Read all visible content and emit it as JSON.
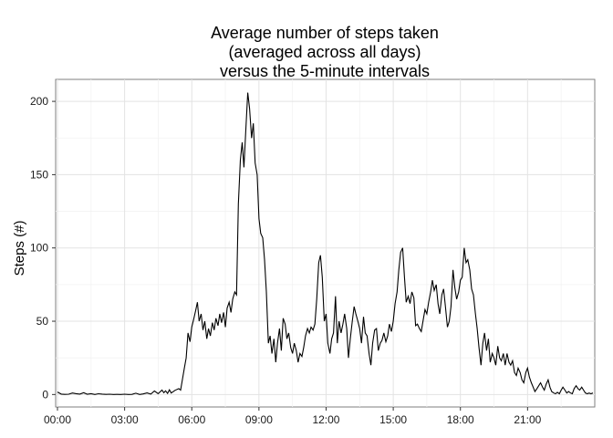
{
  "chart_data": {
    "type": "line",
    "title_lines": [
      "Average number of steps taken",
      "(averaged across all days)",
      "versus the 5-minute intervals"
    ],
    "xlabel": "",
    "ylabel": "Steps (#)",
    "x_unit": "hours since 00:00 (5-minute intervals)",
    "xlim": [
      0,
      23.92
    ],
    "ylim": [
      0,
      215
    ],
    "x_tick_labels": [
      "00:00",
      "03:00",
      "06:00",
      "09:00",
      "12:00",
      "15:00",
      "18:00",
      "21:00"
    ],
    "x_tick_values": [
      0,
      3,
      6,
      9,
      12,
      15,
      18,
      21
    ],
    "y_ticks": [
      0,
      50,
      100,
      150,
      200
    ],
    "grid": true,
    "line_color": "#000000",
    "series": [
      {
        "points": [
          [
            0.0,
            1.7
          ],
          [
            0.17,
            0.3
          ],
          [
            0.33,
            0.1
          ],
          [
            0.5,
            0.2
          ],
          [
            0.67,
            1.0
          ],
          [
            0.83,
            0.6
          ],
          [
            1.0,
            0.3
          ],
          [
            1.17,
            1.2
          ],
          [
            1.33,
            0.2
          ],
          [
            1.5,
            0.6
          ],
          [
            1.67,
            0.0
          ],
          [
            1.83,
            0.5
          ],
          [
            2.0,
            0.3
          ],
          [
            2.17,
            0.1
          ],
          [
            2.33,
            0.2
          ],
          [
            2.5,
            0.0
          ],
          [
            2.67,
            0.1
          ],
          [
            2.83,
            0.0
          ],
          [
            3.0,
            0.2
          ],
          [
            3.17,
            0.0
          ],
          [
            3.33,
            0.1
          ],
          [
            3.5,
            0.9
          ],
          [
            3.67,
            0.0
          ],
          [
            3.83,
            0.4
          ],
          [
            4.0,
            1.1
          ],
          [
            4.17,
            0.3
          ],
          [
            4.33,
            2.4
          ],
          [
            4.5,
            0.6
          ],
          [
            4.67,
            3.0
          ],
          [
            4.75,
            1.2
          ],
          [
            4.83,
            2.5
          ],
          [
            4.92,
            0.8
          ],
          [
            5.0,
            3.2
          ],
          [
            5.08,
            1.0
          ],
          [
            5.25,
            2.8
          ],
          [
            5.42,
            4.0
          ],
          [
            5.5,
            3.0
          ],
          [
            5.58,
            10.0
          ],
          [
            5.67,
            18.0
          ],
          [
            5.75,
            25.0
          ],
          [
            5.83,
            42.0
          ],
          [
            5.92,
            36.0
          ],
          [
            6.0,
            46.0
          ],
          [
            6.08,
            51.0
          ],
          [
            6.17,
            57.0
          ],
          [
            6.25,
            63.0
          ],
          [
            6.33,
            50.0
          ],
          [
            6.42,
            55.0
          ],
          [
            6.5,
            44.0
          ],
          [
            6.58,
            50.0
          ],
          [
            6.67,
            38.0
          ],
          [
            6.75,
            45.0
          ],
          [
            6.83,
            40.0
          ],
          [
            6.92,
            49.0
          ],
          [
            7.0,
            44.0
          ],
          [
            7.08,
            52.0
          ],
          [
            7.17,
            47.0
          ],
          [
            7.25,
            55.0
          ],
          [
            7.33,
            49.0
          ],
          [
            7.42,
            56.0
          ],
          [
            7.5,
            46.0
          ],
          [
            7.58,
            59.0
          ],
          [
            7.67,
            63.0
          ],
          [
            7.75,
            56.0
          ],
          [
            7.83,
            65.0
          ],
          [
            7.92,
            70.0
          ],
          [
            8.0,
            68.0
          ],
          [
            8.08,
            130.0
          ],
          [
            8.17,
            160.0
          ],
          [
            8.25,
            172.0
          ],
          [
            8.33,
            155.0
          ],
          [
            8.42,
            182.0
          ],
          [
            8.5,
            206.0
          ],
          [
            8.58,
            195.0
          ],
          [
            8.67,
            175.0
          ],
          [
            8.75,
            185.0
          ],
          [
            8.83,
            158.0
          ],
          [
            8.92,
            150.0
          ],
          [
            9.0,
            120.0
          ],
          [
            9.08,
            110.0
          ],
          [
            9.17,
            107.0
          ],
          [
            9.25,
            92.0
          ],
          [
            9.33,
            70.0
          ],
          [
            9.42,
            35.0
          ],
          [
            9.5,
            40.0
          ],
          [
            9.58,
            28.0
          ],
          [
            9.67,
            38.0
          ],
          [
            9.75,
            22.0
          ],
          [
            9.83,
            35.0
          ],
          [
            9.92,
            45.0
          ],
          [
            10.0,
            30.0
          ],
          [
            10.08,
            52.0
          ],
          [
            10.17,
            48.0
          ],
          [
            10.25,
            38.0
          ],
          [
            10.33,
            42.0
          ],
          [
            10.42,
            32.0
          ],
          [
            10.5,
            28.0
          ],
          [
            10.58,
            35.0
          ],
          [
            10.67,
            30.0
          ],
          [
            10.75,
            22.0
          ],
          [
            10.83,
            28.0
          ],
          [
            10.92,
            26.0
          ],
          [
            11.0,
            32.0
          ],
          [
            11.08,
            40.0
          ],
          [
            11.17,
            45.0
          ],
          [
            11.25,
            42.0
          ],
          [
            11.33,
            46.0
          ],
          [
            11.42,
            44.0
          ],
          [
            11.5,
            48.0
          ],
          [
            11.58,
            65.0
          ],
          [
            11.67,
            90.0
          ],
          [
            11.75,
            95.0
          ],
          [
            11.83,
            80.0
          ],
          [
            11.92,
            50.0
          ],
          [
            12.0,
            55.0
          ],
          [
            12.08,
            35.0
          ],
          [
            12.17,
            28.0
          ],
          [
            12.25,
            38.0
          ],
          [
            12.33,
            42.0
          ],
          [
            12.42,
            67.0
          ],
          [
            12.5,
            35.0
          ],
          [
            12.58,
            50.0
          ],
          [
            12.67,
            42.0
          ],
          [
            12.75,
            48.0
          ],
          [
            12.83,
            55.0
          ],
          [
            12.92,
            45.0
          ],
          [
            13.0,
            25.0
          ],
          [
            13.08,
            38.0
          ],
          [
            13.17,
            50.0
          ],
          [
            13.25,
            60.0
          ],
          [
            13.33,
            55.0
          ],
          [
            13.42,
            50.0
          ],
          [
            13.5,
            45.0
          ],
          [
            13.58,
            35.0
          ],
          [
            13.67,
            53.0
          ],
          [
            13.75,
            42.0
          ],
          [
            13.83,
            40.0
          ],
          [
            13.92,
            28.0
          ],
          [
            14.0,
            20.0
          ],
          [
            14.08,
            35.0
          ],
          [
            14.17,
            44.0
          ],
          [
            14.25,
            45.0
          ],
          [
            14.33,
            30.0
          ],
          [
            14.42,
            35.0
          ],
          [
            14.5,
            37.0
          ],
          [
            14.58,
            42.0
          ],
          [
            14.67,
            36.0
          ],
          [
            14.75,
            40.0
          ],
          [
            14.83,
            48.0
          ],
          [
            14.92,
            43.0
          ],
          [
            15.0,
            50.0
          ],
          [
            15.08,
            62.0
          ],
          [
            15.17,
            70.0
          ],
          [
            15.25,
            85.0
          ],
          [
            15.33,
            97.0
          ],
          [
            15.42,
            100.0
          ],
          [
            15.5,
            80.0
          ],
          [
            15.58,
            63.0
          ],
          [
            15.67,
            67.0
          ],
          [
            15.75,
            62.0
          ],
          [
            15.83,
            70.0
          ],
          [
            15.92,
            66.0
          ],
          [
            16.0,
            47.0
          ],
          [
            16.08,
            48.0
          ],
          [
            16.17,
            45.0
          ],
          [
            16.25,
            43.0
          ],
          [
            16.33,
            50.0
          ],
          [
            16.42,
            58.0
          ],
          [
            16.5,
            55.0
          ],
          [
            16.58,
            63.0
          ],
          [
            16.67,
            70.0
          ],
          [
            16.75,
            78.0
          ],
          [
            16.83,
            71.0
          ],
          [
            16.92,
            75.0
          ],
          [
            17.0,
            62.0
          ],
          [
            17.08,
            55.0
          ],
          [
            17.17,
            68.0
          ],
          [
            17.25,
            72.0
          ],
          [
            17.33,
            60.0
          ],
          [
            17.42,
            46.0
          ],
          [
            17.5,
            50.0
          ],
          [
            17.58,
            60.0
          ],
          [
            17.67,
            85.0
          ],
          [
            17.75,
            73.0
          ],
          [
            17.83,
            65.0
          ],
          [
            17.92,
            70.0
          ],
          [
            18.0,
            78.0
          ],
          [
            18.08,
            80.0
          ],
          [
            18.17,
            100.0
          ],
          [
            18.25,
            90.0
          ],
          [
            18.33,
            92.0
          ],
          [
            18.42,
            85.0
          ],
          [
            18.5,
            72.0
          ],
          [
            18.58,
            68.0
          ],
          [
            18.67,
            55.0
          ],
          [
            18.75,
            45.0
          ],
          [
            18.83,
            32.0
          ],
          [
            18.92,
            20.0
          ],
          [
            19.0,
            35.0
          ],
          [
            19.08,
            42.0
          ],
          [
            19.17,
            30.0
          ],
          [
            19.25,
            38.0
          ],
          [
            19.33,
            22.0
          ],
          [
            19.42,
            28.0
          ],
          [
            19.5,
            25.0
          ],
          [
            19.58,
            20.0
          ],
          [
            19.67,
            33.0
          ],
          [
            19.75,
            25.0
          ],
          [
            19.83,
            23.0
          ],
          [
            19.92,
            28.0
          ],
          [
            20.0,
            20.0
          ],
          [
            20.08,
            28.0
          ],
          [
            20.17,
            22.0
          ],
          [
            20.25,
            20.0
          ],
          [
            20.33,
            23.0
          ],
          [
            20.42,
            15.0
          ],
          [
            20.5,
            13.0
          ],
          [
            20.58,
            18.0
          ],
          [
            20.67,
            15.0
          ],
          [
            20.75,
            10.0
          ],
          [
            20.83,
            8.0
          ],
          [
            20.92,
            15.0
          ],
          [
            21.0,
            18.0
          ],
          [
            21.08,
            12.0
          ],
          [
            21.17,
            8.0
          ],
          [
            21.25,
            5.0
          ],
          [
            21.33,
            2.0
          ],
          [
            21.42,
            4.0
          ],
          [
            21.5,
            6.0
          ],
          [
            21.58,
            8.0
          ],
          [
            21.67,
            5.0
          ],
          [
            21.75,
            3.0
          ],
          [
            21.83,
            7.0
          ],
          [
            21.92,
            10.0
          ],
          [
            22.0,
            5.0
          ],
          [
            22.08,
            2.0
          ],
          [
            22.17,
            1.0
          ],
          [
            22.25,
            0.5
          ],
          [
            22.33,
            1.5
          ],
          [
            22.42,
            0.5
          ],
          [
            22.5,
            3.0
          ],
          [
            22.58,
            5.0
          ],
          [
            22.67,
            3.0
          ],
          [
            22.75,
            1.0
          ],
          [
            22.83,
            2.0
          ],
          [
            22.92,
            1.0
          ],
          [
            23.0,
            0.5
          ],
          [
            23.08,
            4.0
          ],
          [
            23.17,
            6.0
          ],
          [
            23.25,
            4.0
          ],
          [
            23.33,
            3.0
          ],
          [
            23.42,
            5.0
          ],
          [
            23.5,
            3.0
          ],
          [
            23.58,
            1.0
          ],
          [
            23.67,
            0.5
          ],
          [
            23.75,
            1.0
          ],
          [
            23.83,
            0.5
          ],
          [
            23.92,
            1.0
          ]
        ]
      }
    ]
  }
}
